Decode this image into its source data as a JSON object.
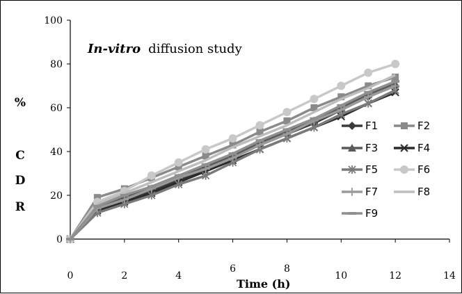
{
  "chart_data": {
    "type": "line",
    "title": {
      "italic_part": "In-vitro",
      "rest": "diffusion study"
    },
    "xlabel": "Time (h)",
    "ylabel_lines": [
      "%",
      "C",
      "D",
      "R"
    ],
    "xlim": [
      0,
      14
    ],
    "ylim": [
      0,
      100
    ],
    "x_ticks": [
      0,
      2,
      4,
      6,
      8,
      10,
      12,
      14
    ],
    "y_ticks": [
      0,
      20,
      40,
      60,
      80,
      100
    ],
    "grid": false,
    "legend_position": "right",
    "x": [
      0,
      1,
      2,
      3,
      4,
      5,
      6,
      7,
      8,
      9,
      10,
      11,
      12
    ],
    "series": [
      {
        "name": "F1",
        "color": "#3a3a3a",
        "marker": "diamond",
        "values": [
          0,
          15,
          18,
          22,
          27,
          32,
          38,
          43,
          48,
          53,
          59,
          65,
          70
        ]
      },
      {
        "name": "F2",
        "color": "#8a8a8a",
        "marker": "square",
        "values": [
          0,
          19,
          23,
          28,
          33,
          38,
          43,
          49,
          54,
          60,
          65,
          70,
          74
        ]
      },
      {
        "name": "F3",
        "color": "#5a5a5a",
        "marker": "triangle",
        "values": [
          0,
          15,
          19,
          23,
          28,
          33,
          38,
          44,
          49,
          54,
          60,
          66,
          71
        ]
      },
      {
        "name": "F4",
        "color": "#2a2a2a",
        "marker": "x",
        "values": [
          0,
          13,
          17,
          21,
          26,
          31,
          36,
          41,
          46,
          51,
          56,
          62,
          67
        ]
      },
      {
        "name": "F5",
        "color": "#7a7a7a",
        "marker": "star",
        "values": [
          0,
          12,
          16,
          20,
          25,
          29,
          35,
          41,
          46,
          51,
          57,
          62,
          68
        ]
      },
      {
        "name": "F6",
        "color": "#c8c8c8",
        "marker": "circle",
        "values": [
          0,
          17,
          22,
          29,
          35,
          41,
          46,
          52,
          58,
          64,
          70,
          76,
          80
        ]
      },
      {
        "name": "F7",
        "color": "#9a9a9a",
        "marker": "plus",
        "values": [
          0,
          14,
          18,
          23,
          28,
          32,
          37,
          43,
          48,
          54,
          59,
          65,
          70
        ]
      },
      {
        "name": "F8",
        "color": "#bdbdbd",
        "marker": "none",
        "values": [
          0,
          16,
          21,
          26,
          31,
          36,
          42,
          47,
          52,
          58,
          64,
          69,
          75
        ]
      },
      {
        "name": "F9",
        "color": "#8f8f8f",
        "marker": "dash",
        "values": [
          0,
          15,
          20,
          24,
          29,
          34,
          39,
          45,
          50,
          55,
          61,
          67,
          72
        ]
      }
    ]
  }
}
